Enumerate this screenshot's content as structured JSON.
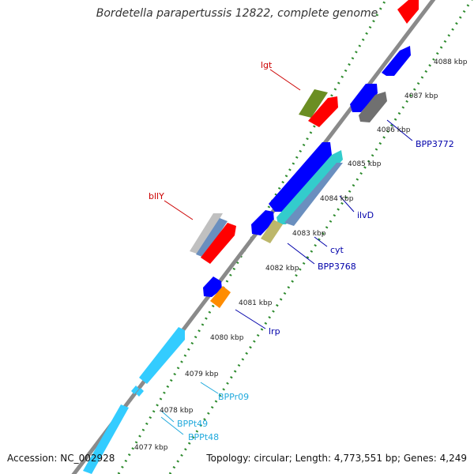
{
  "title": "Bordetella parapertussis 12822, complete genome",
  "footer": {
    "accession": "Accession: NC_002928",
    "topology": "Topology: circular; Length: 4,773,551 bp; Genes: 4,249"
  },
  "colors": {
    "backbone": "#8a8a8a",
    "tick": "#2e8b2e",
    "gene_red": "#ff0000",
    "gene_blue": "#0000ff",
    "gene_cyan": "#33ccff",
    "gene_olive": "#6b8e23",
    "gene_gray": "#707070",
    "gene_khaki": "#bdb76b",
    "gene_orange": "#ff8c00",
    "label_red": "#cc0000",
    "label_blue": "#0000aa",
    "label_cyan": "#22aadd"
  },
  "scale_labels": [
    "4077 kbp",
    "4078 kbp",
    "4079 kbp",
    "4080 kbp",
    "4081 kbp",
    "4082 kbp",
    "4083 kbp",
    "4084 kbp",
    "4085 kbp",
    "4086 kbp",
    "4087 kbp",
    "4088 kbp"
  ],
  "gene_labels": [
    "lgt",
    "bllY",
    "ilvD",
    "cyt",
    "BPP3768",
    "lrp",
    "BPP3772",
    "BPPr09",
    "BPPt49",
    "BPPt48"
  ]
}
